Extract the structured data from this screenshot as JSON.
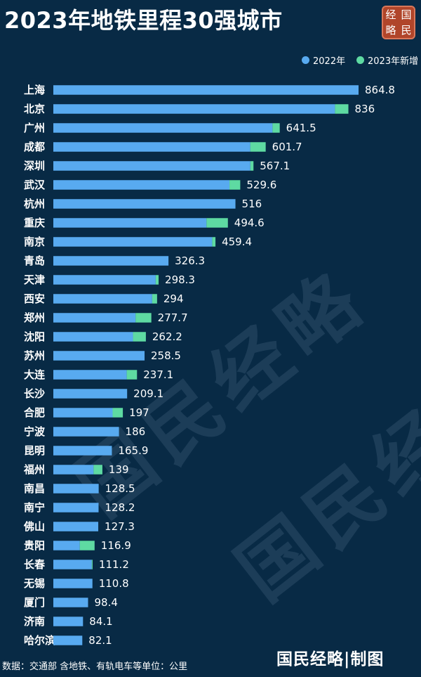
{
  "title": "2023年地铁里程30强城市",
  "logo": {
    "chars": [
      "经",
      "国",
      "略",
      "民"
    ]
  },
  "watermark": "国民经略",
  "footer": {
    "note": "数据：交通部 含地铁、有轨电车等单位：公里",
    "brand": "国民经略|制图"
  },
  "chart_data": {
    "type": "bar",
    "orientation": "horizontal",
    "stacked": true,
    "legend_position": "top-right",
    "colors": {
      "series_2022": "#58aaf0",
      "series_2023_new": "#5edaa2"
    },
    "categories": [
      "上海",
      "北京",
      "广州",
      "成都",
      "深圳",
      "武汉",
      "杭州",
      "重庆",
      "南京",
      "青岛",
      "天津",
      "西安",
      "郑州",
      "沈阳",
      "苏州",
      "大连",
      "长沙",
      "合肥",
      "宁波",
      "昆明",
      "福州",
      "南昌",
      "南宁",
      "佛山",
      "贵阳",
      "长春",
      "无锡",
      "厦门",
      "济南",
      "哈尔滨"
    ],
    "series": [
      {
        "name": "2022年",
        "values": [
          864.8,
          798,
          621,
          558,
          558.2,
          499.1,
          516,
          434,
          450,
          326.3,
          290,
          280,
          233,
          225.7,
          258.5,
          208,
          209.1,
          168,
          186,
          165.9,
          114,
          128.5,
          128.2,
          127.3,
          75,
          109,
          110.8,
          98.4,
          84.1,
          82.1
        ]
      },
      {
        "name": "2023年新增",
        "values": [
          0,
          38,
          20.5,
          43.7,
          8.9,
          30.5,
          0,
          60.6,
          9.4,
          0,
          8.3,
          14,
          44.7,
          36.5,
          0,
          29.1,
          0,
          29,
          0,
          0,
          25,
          0,
          0,
          0,
          41.9,
          2.2,
          0,
          0,
          0,
          0
        ]
      }
    ],
    "totals": [
      "864.8",
      "836",
      "641.5",
      "601.7",
      "567.1",
      "529.6",
      "516",
      "494.6",
      "459.4",
      "326.3",
      "298.3",
      "294",
      "277.7",
      "262.2",
      "258.5",
      "237.1",
      "209.1",
      "197",
      "186",
      "165.9",
      "139",
      "128.5",
      "128.2",
      "127.3",
      "116.9",
      "111.2",
      "110.8",
      "98.4",
      "84.1",
      "82.1"
    ],
    "xlim": [
      0,
      864.8
    ],
    "grid": false
  }
}
